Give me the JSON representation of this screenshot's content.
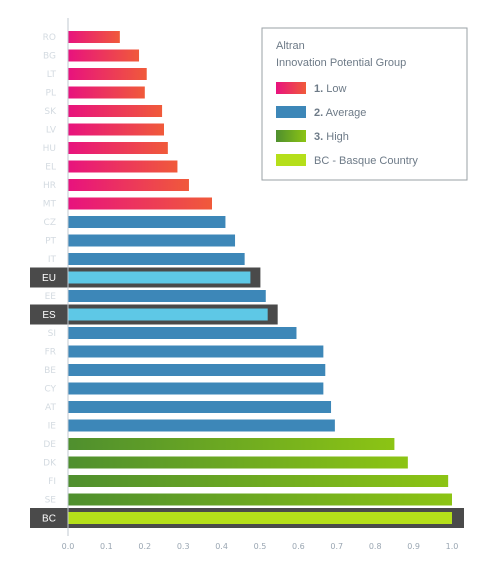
{
  "chart_data": {
    "type": "bar",
    "orientation": "horizontal",
    "title": "",
    "xlabel": "",
    "ylabel": "",
    "xlim": [
      0,
      1.0
    ],
    "x_ticks": [
      "0.0",
      "0.1",
      "0.2",
      "0.3",
      "0.4",
      "0.5",
      "0.6",
      "0.7",
      "0.8",
      "0.9",
      "1.0"
    ],
    "grid": false,
    "legend_position": "top-right",
    "legend": {
      "title_line1": "Altran",
      "title_line2": "Innovation Potential Group",
      "items": [
        {
          "num": "1.",
          "text": " Low",
          "group": "low"
        },
        {
          "num": "2.",
          "text": " Average",
          "group": "average"
        },
        {
          "num": "3.",
          "text": " High",
          "group": "high"
        },
        {
          "num": "",
          "text": "BC - Basque Country",
          "group": "bc"
        }
      ]
    },
    "colors": {
      "low_start": "#e8127e",
      "low_end": "#f05a3a",
      "average": "#3d87b8",
      "average_light": "#5ec8e6",
      "high_start": "#4f8f2e",
      "high_end": "#8cc414",
      "bc": "#b5df1a",
      "highlight_band": "#4a4a4a"
    },
    "categories": [
      "RO",
      "BG",
      "LT",
      "PL",
      "SK",
      "LV",
      "HU",
      "EL",
      "HR",
      "MT",
      "CZ",
      "PT",
      "IT",
      "EU",
      "EE",
      "ES",
      "SI",
      "FR",
      "BE",
      "CY",
      "AT",
      "IE",
      "DE",
      "DK",
      "FI",
      "SE",
      "BC"
    ],
    "values": [
      0.135,
      0.185,
      0.205,
      0.2,
      0.245,
      0.25,
      0.26,
      0.285,
      0.315,
      0.375,
      0.41,
      0.435,
      0.46,
      0.475,
      0.515,
      0.52,
      0.595,
      0.665,
      0.67,
      0.665,
      0.685,
      0.695,
      0.85,
      0.885,
      0.99,
      1.0,
      1.0
    ],
    "groups": [
      "low",
      "low",
      "low",
      "low",
      "low",
      "low",
      "low",
      "low",
      "low",
      "low",
      "average",
      "average",
      "average",
      "average",
      "average",
      "average",
      "average",
      "average",
      "average",
      "average",
      "average",
      "average",
      "high",
      "high",
      "high",
      "high",
      "bc"
    ],
    "highlighted": [
      "EU",
      "ES",
      "BC"
    ]
  }
}
